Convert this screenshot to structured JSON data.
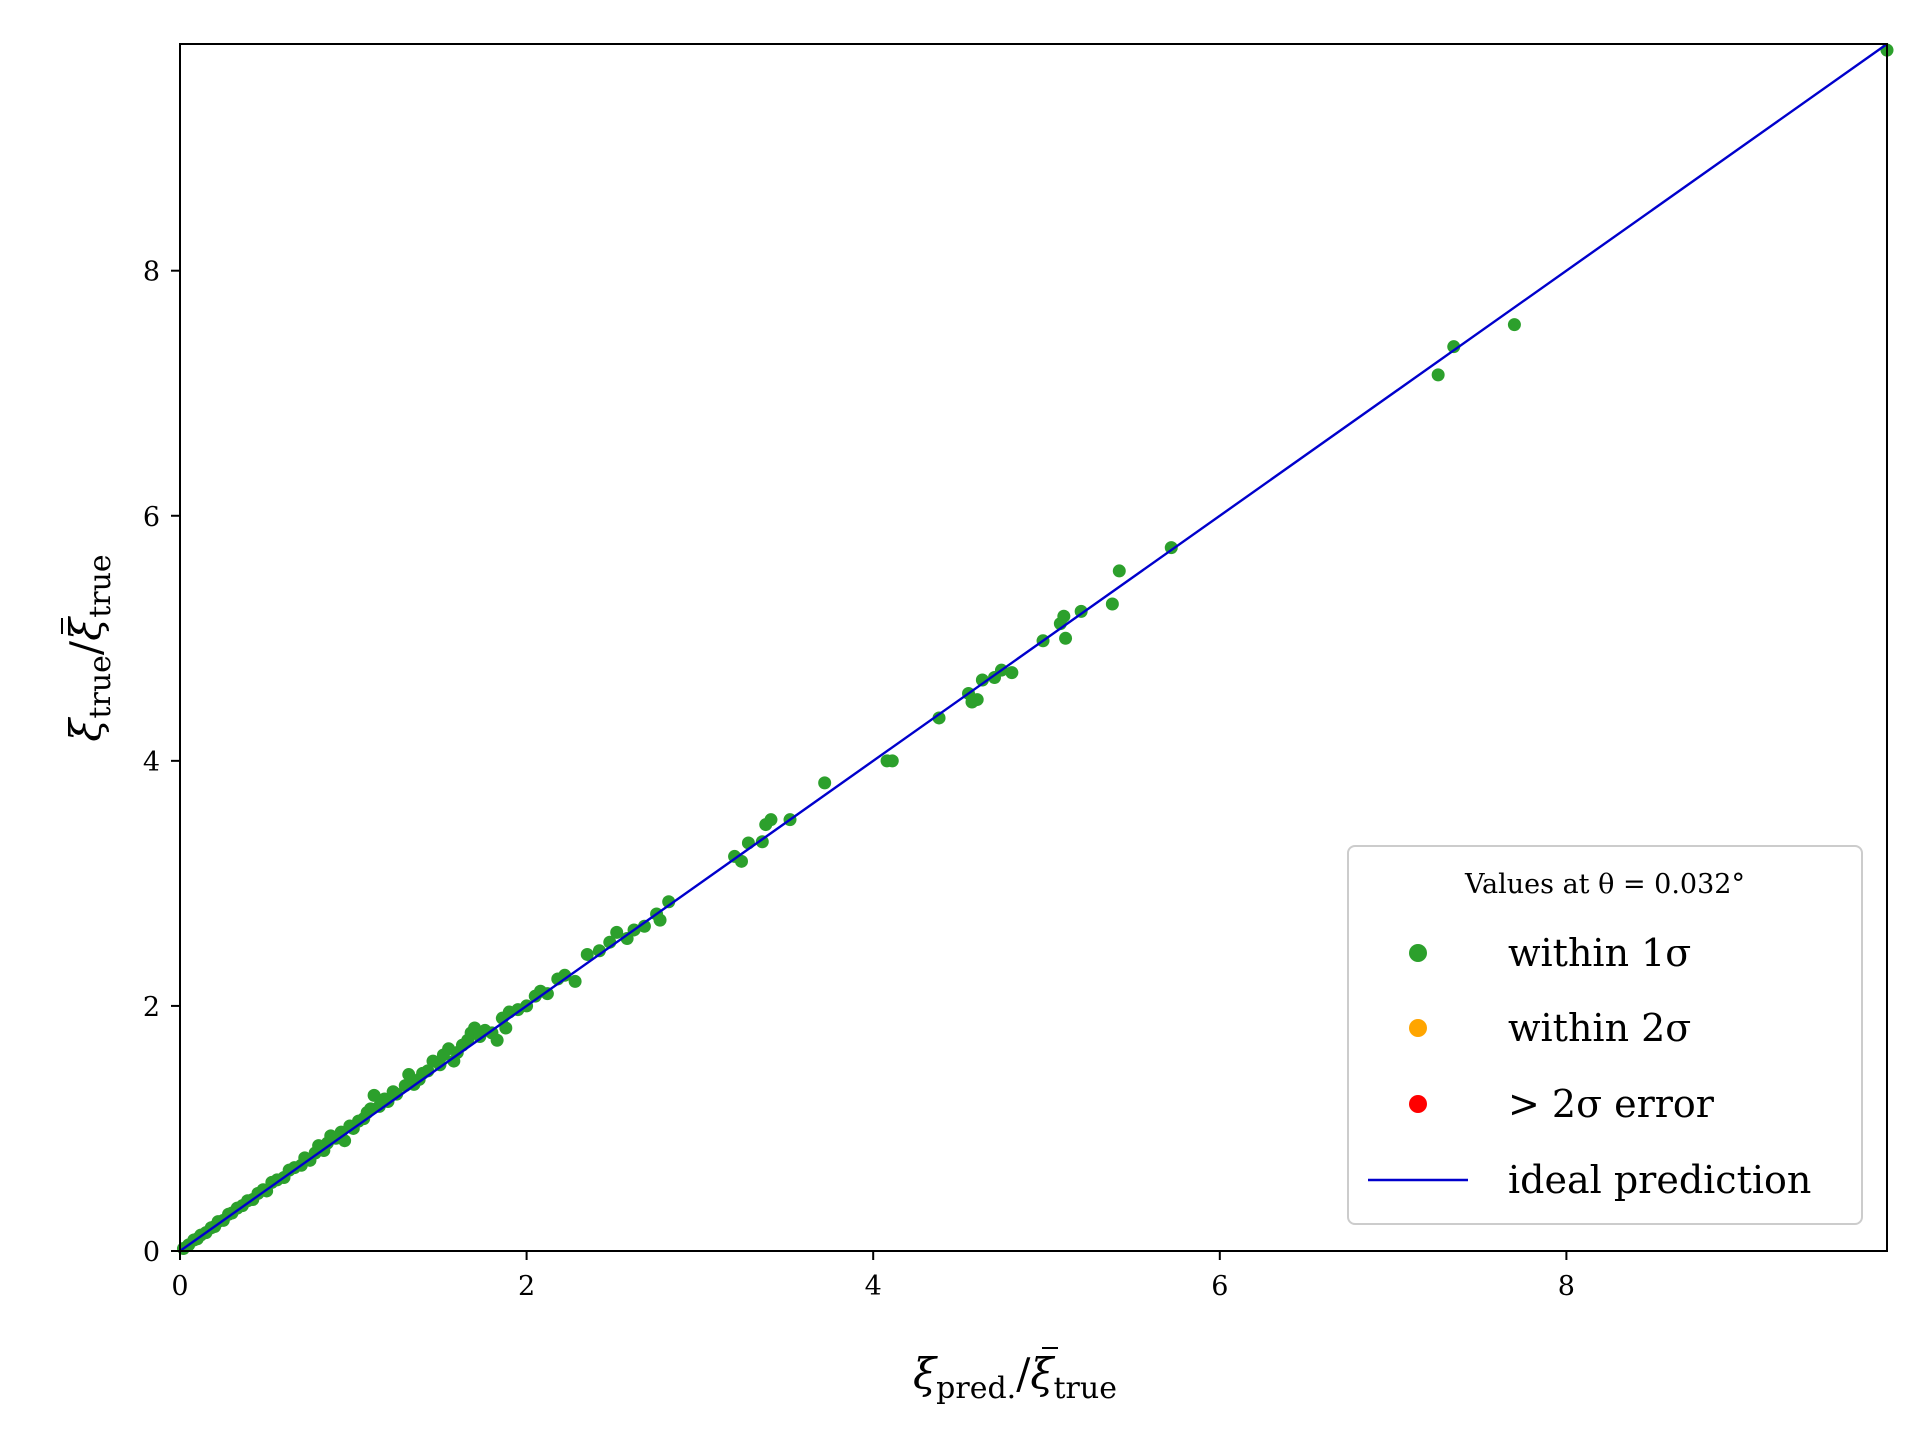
{
  "chart_data": {
    "type": "scatter",
    "title": "",
    "xlabel": {
      "main": "ξ",
      "sub": "pred.",
      "over": "ξ",
      "oversub": "true"
    },
    "ylabel": {
      "main": "ξ",
      "sub": "true",
      "over": "ξ",
      "oversub": "true"
    },
    "xlim": [
      0,
      9.85
    ],
    "ylim": [
      0,
      9.85
    ],
    "xticks": [
      0,
      2,
      4,
      6,
      8
    ],
    "yticks": [
      0,
      2,
      4,
      6,
      8
    ],
    "grid": false,
    "legend": {
      "placement": "lower-right",
      "title": "Values at θ = 0.032°",
      "entries": [
        {
          "label": "within 1σ",
          "marker": "dot",
          "color": "#2ca02c"
        },
        {
          "label": "within 2σ",
          "marker": "dot",
          "color": "#ffa500"
        },
        {
          "label": "> 2σ error",
          "marker": "dot",
          "color": "#ff0000"
        },
        {
          "label": "ideal prediction",
          "marker": "line",
          "color": "#0000cc"
        }
      ]
    },
    "ideal_line": {
      "name": "ideal prediction",
      "x": [
        0,
        9.85
      ],
      "y": [
        0,
        9.85
      ],
      "color": "#0000cc"
    },
    "series": [
      {
        "name": "within 1σ",
        "color": "#2ca02c",
        "points": [
          [
            0.02,
            0.02
          ],
          [
            0.05,
            0.05
          ],
          [
            0.08,
            0.09
          ],
          [
            0.1,
            0.1
          ],
          [
            0.12,
            0.13
          ],
          [
            0.15,
            0.15
          ],
          [
            0.18,
            0.19
          ],
          [
            0.2,
            0.2
          ],
          [
            0.22,
            0.24
          ],
          [
            0.25,
            0.25
          ],
          [
            0.28,
            0.3
          ],
          [
            0.3,
            0.31
          ],
          [
            0.33,
            0.35
          ],
          [
            0.36,
            0.37
          ],
          [
            0.39,
            0.41
          ],
          [
            0.42,
            0.42
          ],
          [
            0.45,
            0.47
          ],
          [
            0.48,
            0.5
          ],
          [
            0.5,
            0.49
          ],
          [
            0.53,
            0.56
          ],
          [
            0.56,
            0.58
          ],
          [
            0.6,
            0.6
          ],
          [
            0.63,
            0.66
          ],
          [
            0.66,
            0.68
          ],
          [
            0.7,
            0.7
          ],
          [
            0.72,
            0.76
          ],
          [
            0.75,
            0.74
          ],
          [
            0.78,
            0.8
          ],
          [
            0.8,
            0.86
          ],
          [
            0.83,
            0.82
          ],
          [
            0.85,
            0.88
          ],
          [
            0.87,
            0.94
          ],
          [
            0.9,
            0.92
          ],
          [
            0.93,
            0.97
          ],
          [
            0.95,
            0.9
          ],
          [
            0.98,
            1.02
          ],
          [
            1.0,
            1.0
          ],
          [
            1.03,
            1.06
          ],
          [
            1.06,
            1.08
          ],
          [
            1.08,
            1.13
          ],
          [
            1.1,
            1.16
          ],
          [
            1.12,
            1.27
          ],
          [
            1.15,
            1.18
          ],
          [
            1.18,
            1.24
          ],
          [
            1.2,
            1.22
          ],
          [
            1.23,
            1.3
          ],
          [
            1.25,
            1.28
          ],
          [
            1.3,
            1.35
          ],
          [
            1.32,
            1.44
          ],
          [
            1.35,
            1.36
          ],
          [
            1.38,
            1.4
          ],
          [
            1.4,
            1.45
          ],
          [
            1.43,
            1.47
          ],
          [
            1.46,
            1.55
          ],
          [
            1.5,
            1.52
          ],
          [
            1.52,
            1.6
          ],
          [
            1.55,
            1.65
          ],
          [
            1.58,
            1.55
          ],
          [
            1.6,
            1.62
          ],
          [
            1.63,
            1.68
          ],
          [
            1.66,
            1.72
          ],
          [
            1.68,
            1.78
          ],
          [
            1.7,
            1.82
          ],
          [
            1.73,
            1.75
          ],
          [
            1.76,
            1.8
          ],
          [
            1.8,
            1.78
          ],
          [
            1.83,
            1.72
          ],
          [
            1.86,
            1.9
          ],
          [
            1.88,
            1.82
          ],
          [
            1.9,
            1.95
          ],
          [
            1.95,
            1.97
          ],
          [
            2.0,
            2.0
          ],
          [
            2.05,
            2.08
          ],
          [
            2.08,
            2.12
          ],
          [
            2.12,
            2.1
          ],
          [
            2.18,
            2.22
          ],
          [
            2.22,
            2.25
          ],
          [
            2.28,
            2.2
          ],
          [
            2.35,
            2.42
          ],
          [
            2.42,
            2.45
          ],
          [
            2.48,
            2.52
          ],
          [
            2.52,
            2.6
          ],
          [
            2.58,
            2.55
          ],
          [
            2.62,
            2.62
          ],
          [
            2.68,
            2.65
          ],
          [
            2.75,
            2.75
          ],
          [
            2.77,
            2.7
          ],
          [
            2.82,
            2.85
          ],
          [
            3.2,
            3.22
          ],
          [
            3.24,
            3.18
          ],
          [
            3.28,
            3.33
          ],
          [
            3.36,
            3.34
          ],
          [
            3.38,
            3.48
          ],
          [
            3.41,
            3.52
          ],
          [
            3.52,
            3.52
          ],
          [
            3.72,
            3.82
          ],
          [
            4.08,
            4.0
          ],
          [
            4.11,
            4.0
          ],
          [
            4.38,
            4.35
          ],
          [
            4.55,
            4.55
          ],
          [
            4.57,
            4.48
          ],
          [
            4.6,
            4.5
          ],
          [
            4.63,
            4.66
          ],
          [
            4.7,
            4.68
          ],
          [
            4.74,
            4.74
          ],
          [
            4.8,
            4.72
          ],
          [
            4.98,
            4.98
          ],
          [
            5.08,
            5.12
          ],
          [
            5.1,
            5.18
          ],
          [
            5.11,
            5.0
          ],
          [
            5.2,
            5.22
          ],
          [
            5.38,
            5.28
          ],
          [
            5.42,
            5.55
          ],
          [
            5.72,
            5.74
          ],
          [
            7.26,
            7.15
          ],
          [
            7.35,
            7.38
          ],
          [
            7.7,
            7.56
          ],
          [
            9.85,
            9.8
          ]
        ]
      },
      {
        "name": "within 2σ",
        "color": "#ffa500",
        "points": []
      },
      {
        "name": "> 2σ error",
        "color": "#ff0000",
        "points": []
      }
    ]
  }
}
